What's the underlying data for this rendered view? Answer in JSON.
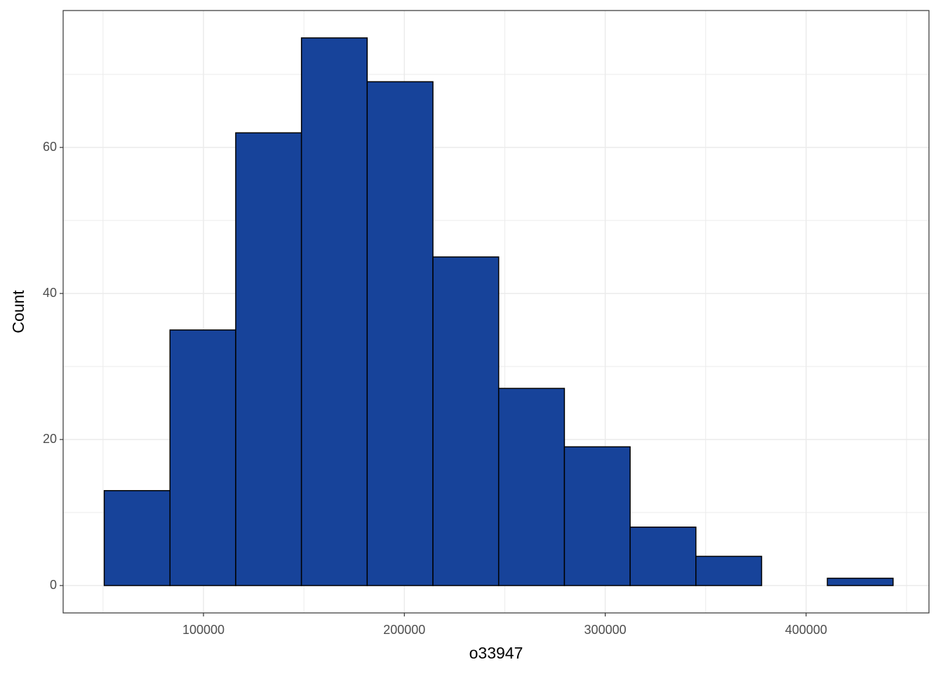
{
  "chart_data": {
    "type": "histogram",
    "x_label": "o33947",
    "y_label": "Count",
    "bins": [
      50600,
      83330,
      116050,
      148780,
      181500,
      214230,
      246950,
      279680,
      312400,
      345130,
      377850,
      410580,
      443300
    ],
    "values": [
      13,
      35,
      62,
      75,
      69,
      45,
      27,
      19,
      8,
      4,
      0,
      1
    ],
    "color": "#17439a",
    "xlim": [
      30143,
      461160
    ],
    "xticks": [
      100000,
      200000,
      300000,
      400000
    ],
    "ylim": [
      -3.75,
      78.75
    ],
    "yticks": [
      0,
      20,
      40,
      60
    ],
    "grid": true
  }
}
